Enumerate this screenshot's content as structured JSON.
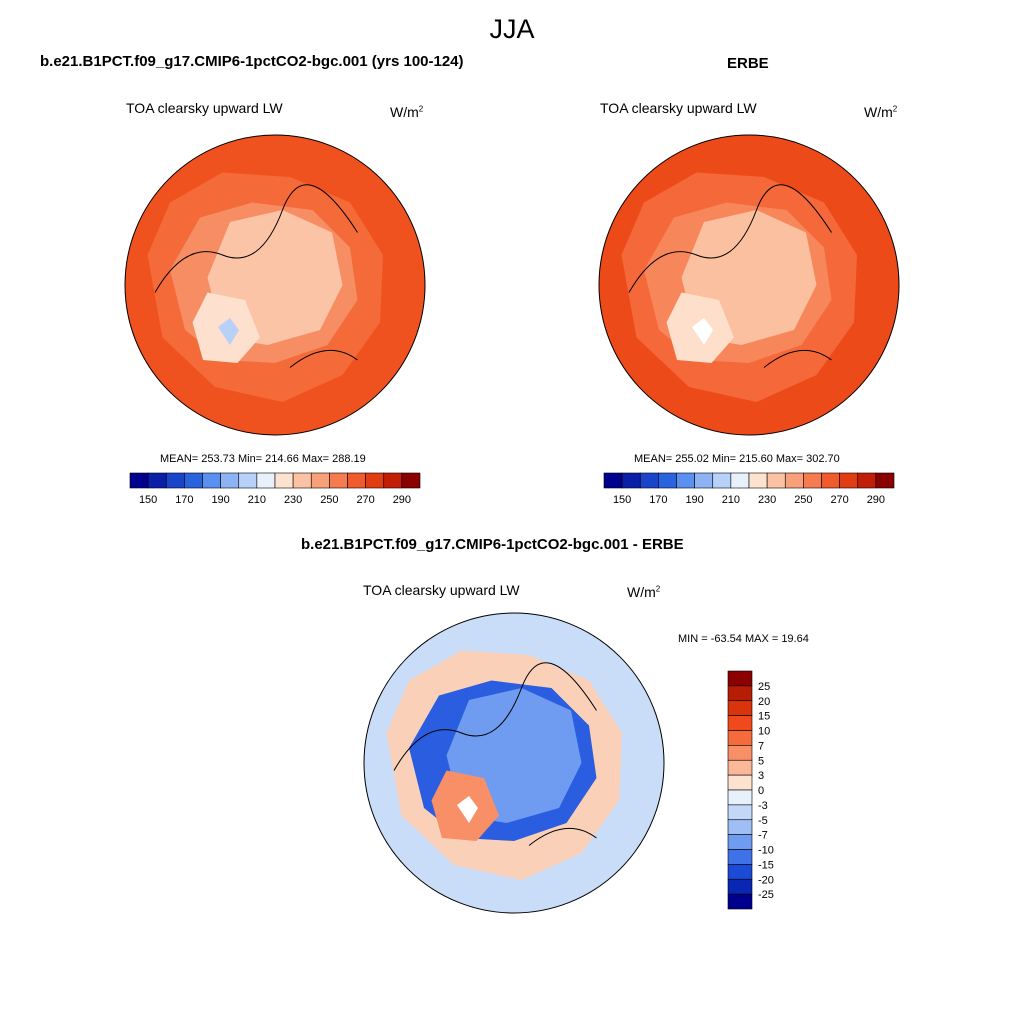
{
  "figure": {
    "title": "JJA"
  },
  "panels": [
    {
      "id": "model",
      "heading": "b.e21.B1PCT.f09_g17.CMIP6-1pctCO2-bgc.001 (yrs 100-124)",
      "variable": "TOA clearsky upward LW",
      "units_base": "W/m",
      "units_exp": "2",
      "stats": "MEAN= 253.73  Min= 214.66  Max= 288.19"
    },
    {
      "id": "obs",
      "heading": "ERBE",
      "variable": "TOA clearsky upward LW",
      "units_base": "W/m",
      "units_exp": "2",
      "stats": "MEAN= 255.02  Min= 215.60  Max= 302.70"
    },
    {
      "id": "diff",
      "heading": "b.e21.B1PCT.f09_g17.CMIP6-1pctCO2-bgc.001 - ERBE",
      "variable": "TOA clearsky upward LW",
      "units_base": "W/m",
      "units_exp": "2",
      "stats": "MIN = -63.54 MAX =  19.64"
    }
  ],
  "chart_data": [
    {
      "type": "heatmap",
      "title": "b.e21.B1PCT.f09_g17.CMIP6-1pctCO2-bgc.001 (yrs 100-124)",
      "projection": "polar-stereographic-north",
      "variable": "TOA clearsky upward LW",
      "mean": 253.73,
      "min": 214.66,
      "max": 288.19,
      "colorbar": {
        "orientation": "horizontal",
        "tick_labels": [
          "150",
          "170",
          "190",
          "210",
          "230",
          "250",
          "270",
          "290"
        ],
        "colors": [
          "#00008f",
          "#0a1fa8",
          "#1a44c9",
          "#2a63de",
          "#5b8ff0",
          "#8db3f5",
          "#b8d1f8",
          "#e7f0fb",
          "#fde2cf",
          "#fbc3a3",
          "#f8a079",
          "#f57c51",
          "#f15a2c",
          "#e23c13",
          "#c21d07",
          "#8b0000"
        ]
      },
      "fields": [
        {
          "color": "#f0521f"
        },
        {
          "color": "#f46a38"
        },
        {
          "color": "#f78d63"
        },
        {
          "color": "#fbc4a6"
        },
        {
          "color": "#fde0cd"
        },
        {
          "color": "#b8d1f8"
        }
      ]
    },
    {
      "type": "heatmap",
      "title": "ERBE",
      "projection": "polar-stereographic-north",
      "variable": "TOA clearsky upward LW",
      "mean": 255.02,
      "min": 215.6,
      "max": 302.7,
      "colorbar": {
        "orientation": "horizontal",
        "tick_labels": [
          "150",
          "170",
          "190",
          "210",
          "230",
          "250",
          "270",
          "290"
        ],
        "colors": [
          "#00008f",
          "#0a1fa8",
          "#1a44c9",
          "#2a63de",
          "#5b8ff0",
          "#8db3f5",
          "#b8d1f8",
          "#e7f0fb",
          "#fde2cf",
          "#fbc3a3",
          "#f8a079",
          "#f57c51",
          "#f15a2c",
          "#e23c13",
          "#c21d07",
          "#8b0000"
        ]
      },
      "fields": [
        {
          "color": "#ed4a1a"
        },
        {
          "color": "#f4683a"
        },
        {
          "color": "#f7865a"
        },
        {
          "color": "#fbc0a0"
        },
        {
          "color": "#fddfcc"
        },
        {
          "color": "#ffffff"
        }
      ]
    },
    {
      "type": "heatmap",
      "title": "b.e21.B1PCT.f09_g17.CMIP6-1pctCO2-bgc.001 - ERBE",
      "projection": "polar-stereographic-north",
      "variable": "TOA clearsky upward LW",
      "min": -63.54,
      "max": 19.64,
      "colorbar": {
        "orientation": "vertical",
        "tick_labels": [
          "25",
          "20",
          "15",
          "10",
          "7",
          "5",
          "3",
          "0",
          "-3",
          "-5",
          "-7",
          "-10",
          "-15",
          "-20",
          "-25"
        ],
        "colors": [
          "#8b0000",
          "#b71c05",
          "#d9340c",
          "#f04a1c",
          "#f66b3c",
          "#f98f66",
          "#fbb797",
          "#fde2cf",
          "#e7f0fb",
          "#c3d8f9",
          "#9ebef5",
          "#6f9bf0",
          "#3f72e6",
          "#1a4ad6",
          "#0a27b4",
          "#00008f"
        ]
      },
      "fields": [
        {
          "color": "#c9dcf8"
        },
        {
          "color": "#fbd0b8"
        },
        {
          "color": "#2a5de0"
        },
        {
          "color": "#6f9bf0"
        },
        {
          "color": "#f98f66"
        },
        {
          "color": "#ffffff"
        }
      ]
    }
  ]
}
